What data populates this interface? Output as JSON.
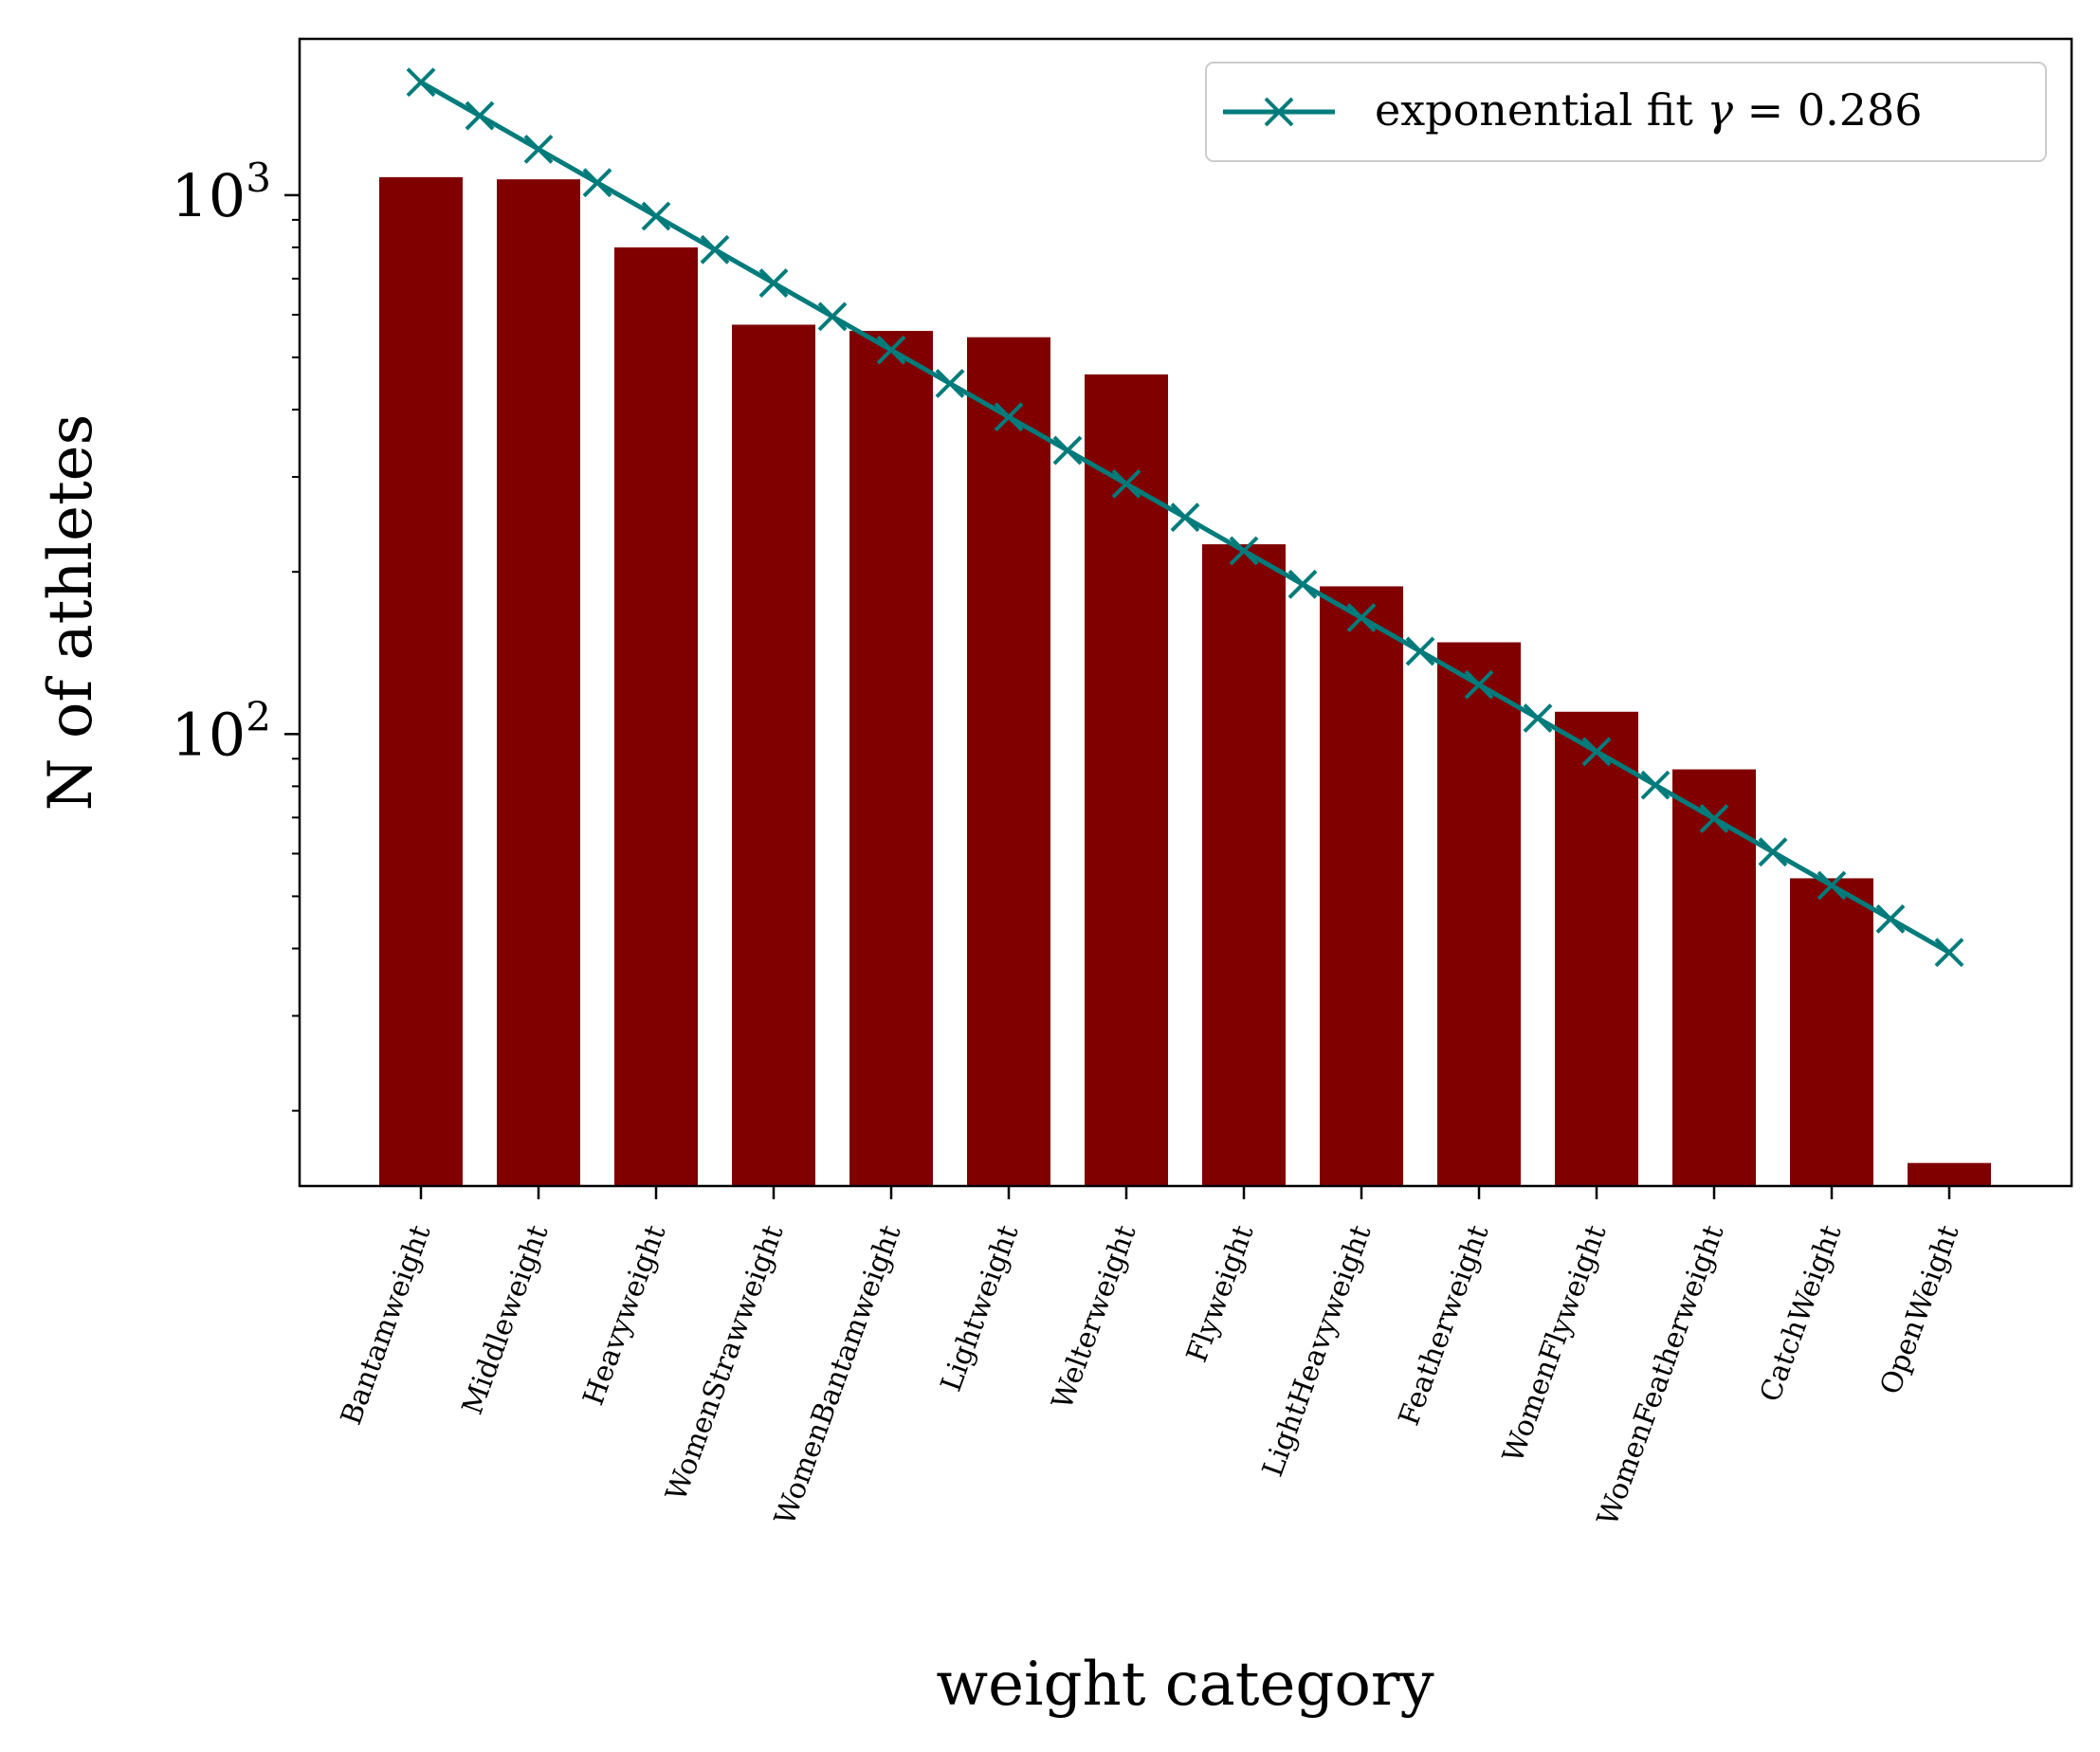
{
  "chart_data": {
    "type": "bar",
    "xlabel": "weight category",
    "ylabel": "N of athletes",
    "yscale": "log",
    "ylim": [
      14.5,
      1950
    ],
    "grid": false,
    "legend_position": "top-right",
    "categories": [
      "Bantamweight",
      "Middleweight",
      "Heavyweight",
      "WomenStrawweight",
      "WomenBantamweight",
      "Lightweight",
      "Welterweight",
      "Flyweight",
      "LightHeavyweight",
      "Featherweight",
      "WomenFlyweight",
      "WomenFeatherweight",
      "CatchWeight",
      "OpenWeight"
    ],
    "values": [
      1080,
      1070,
      800,
      575,
      560,
      545,
      465,
      225,
      188,
      148,
      110,
      86,
      54,
      16
    ],
    "ytick_labels": [
      {
        "base": "10",
        "exp": "2",
        "value": 100
      },
      {
        "base": "10",
        "exp": "3",
        "value": 1000
      }
    ],
    "fit_line": {
      "legend_label_prefix": "exponential fit ",
      "legend_symbol": "γ",
      "legend_label_suffix": " = 0.286",
      "x": [
        0,
        0.5,
        1,
        1.5,
        2,
        2.5,
        3,
        3.5,
        4,
        4.5,
        5,
        5.5,
        6,
        6.5,
        7,
        7.5,
        8,
        8.5,
        9,
        9.5,
        10,
        10.5,
        11,
        11.5,
        12,
        12.5,
        13
      ],
      "amplitude": 1620,
      "gamma": 0.286
    },
    "colors": {
      "bars": "#800000",
      "fit": "#007b7b"
    }
  }
}
